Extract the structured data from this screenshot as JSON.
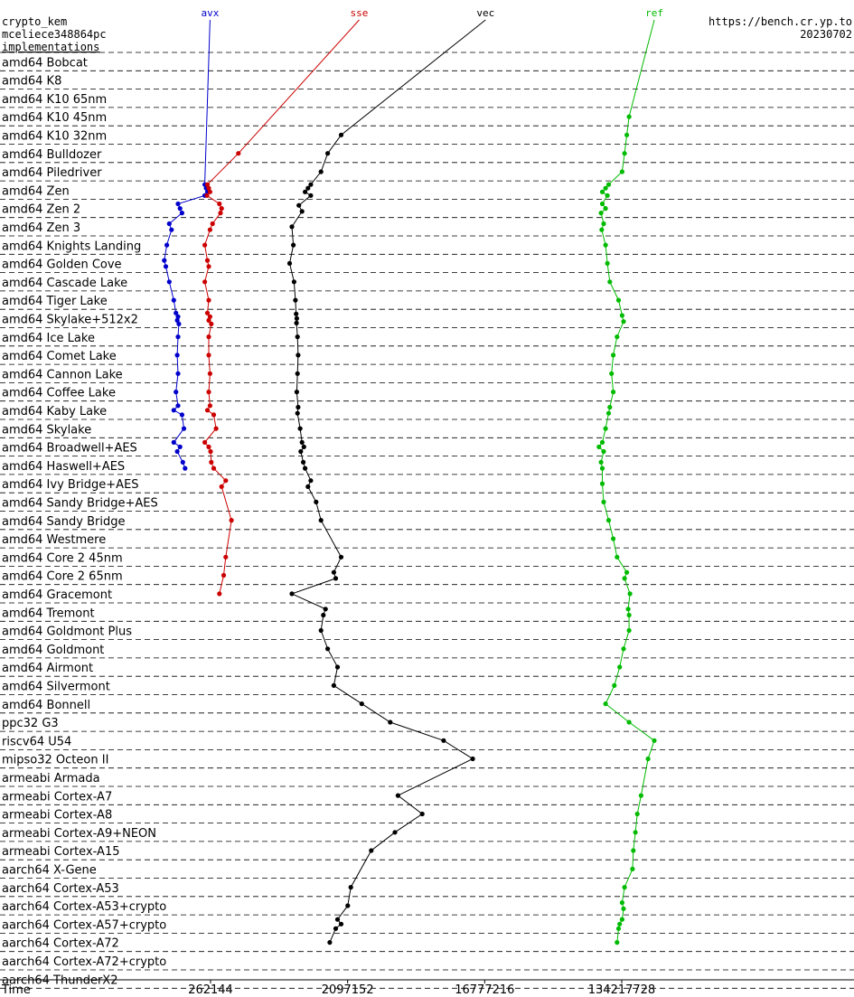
{
  "header": {
    "line1": "crypto_kem",
    "line2": "mceliece348864pc",
    "line3": "implementations",
    "site": "https://bench.cr.yp.to",
    "date": "20230702"
  },
  "chart_data": {
    "type": "line",
    "xlabel": "Time",
    "x_scale": "log2",
    "xlim": [
      32768,
      1073741824
    ],
    "x_ticks": [
      262144,
      2097152,
      16777216,
      134217728
    ],
    "x_tick_labels": [
      "262144",
      "2097152",
      "16777216",
      "134217728"
    ],
    "grid": "horizontal dashed separators between CPU groups",
    "categories": [
      "amd64 Bobcat",
      "amd64 K8",
      "amd64 K10 65nm",
      "amd64 K10 45nm",
      "amd64 K10 32nm",
      "amd64 Bulldozer",
      "amd64 Piledriver",
      "amd64 Zen",
      "amd64 Zen 2",
      "amd64 Zen 3",
      "amd64 Knights Landing",
      "amd64 Golden Cove",
      "amd64 Cascade Lake",
      "amd64 Tiger Lake",
      "amd64 Skylake+512x2",
      "amd64 Ice Lake",
      "amd64 Comet Lake",
      "amd64 Cannon Lake",
      "amd64 Coffee Lake",
      "amd64 Kaby Lake",
      "amd64 Skylake",
      "amd64 Broadwell+AES",
      "amd64 Haswell+AES",
      "amd64 Ivy Bridge+AES",
      "amd64 Sandy Bridge+AES",
      "amd64 Sandy Bridge",
      "amd64 Westmere",
      "amd64 Core 2 45nm",
      "amd64 Core 2 65nm",
      "amd64 Gracemont",
      "amd64 Tremont",
      "amd64 Goldmont Plus",
      "amd64 Goldmont",
      "amd64 Airmont",
      "amd64 Silvermont",
      "amd64 Bonnell",
      "ppc32 G3",
      "riscv64 U54",
      "mipso32 Octeon II",
      "armeabi Armada",
      "armeabi Cortex-A7",
      "armeabi Cortex-A8",
      "armeabi Cortex-A9+NEON",
      "armeabi Cortex-A15",
      "aarch64 X-Gene",
      "aarch64 Cortex-A53",
      "aarch64 Cortex-A53+crypto",
      "aarch64 Cortex-A57+crypto",
      "aarch64 Cortex-A72",
      "aarch64 Cortex-A72+crypto",
      "aarch64 ThunderX2"
    ],
    "series": [
      {
        "name": "avx",
        "color": "#0000cc",
        "label_value": 260000,
        "points": [
          {
            "row": 7,
            "values": [
              240000,
              245000,
              250000,
              240000
            ]
          },
          {
            "row": 8,
            "values": [
              160000,
              165000,
              170000
            ]
          },
          {
            "row": 9,
            "values": [
              140000,
              145000
            ]
          },
          {
            "row": 10,
            "values": [
              135000
            ]
          },
          {
            "row": 11,
            "values": [
              130000,
              133000
            ]
          },
          {
            "row": 12,
            "values": [
              140000
            ]
          },
          {
            "row": 13,
            "values": [
              150000
            ]
          },
          {
            "row": 14,
            "values": [
              155000,
              160000,
              158000,
              162000
            ]
          },
          {
            "row": 15,
            "values": [
              160000
            ]
          },
          {
            "row": 16,
            "values": [
              158000
            ]
          },
          {
            "row": 17,
            "values": [
              160000
            ]
          },
          {
            "row": 18,
            "values": [
              155000
            ]
          },
          {
            "row": 19,
            "values": [
              160000,
              150000,
              170000
            ]
          },
          {
            "row": 20,
            "values": [
              175000
            ]
          },
          {
            "row": 21,
            "values": [
              150000,
              165000,
              158000
            ]
          },
          {
            "row": 22,
            "values": [
              172000,
              178000
            ]
          }
        ]
      },
      {
        "name": "sse",
        "color": "#cc0000",
        "label_value": 2500000,
        "points": [
          {
            "row": 5,
            "values": [
              400000
            ]
          },
          {
            "row": 7,
            "values": [
              250000,
              255000,
              260000,
              248000
            ]
          },
          {
            "row": 8,
            "values": [
              300000,
              310000,
              305000
            ]
          },
          {
            "row": 9,
            "values": [
              270000,
              260000
            ]
          },
          {
            "row": 10,
            "values": [
              240000
            ]
          },
          {
            "row": 11,
            "values": [
              250000,
              255000
            ]
          },
          {
            "row": 12,
            "values": [
              240000
            ]
          },
          {
            "row": 13,
            "values": [
              255000
            ]
          },
          {
            "row": 14,
            "values": [
              250000,
              260000,
              255000,
              265000
            ]
          },
          {
            "row": 15,
            "values": [
              255000
            ]
          },
          {
            "row": 16,
            "values": [
              255000
            ]
          },
          {
            "row": 17,
            "values": [
              260000
            ]
          },
          {
            "row": 18,
            "values": [
              255000
            ]
          },
          {
            "row": 19,
            "values": [
              260000,
              250000,
              275000
            ]
          },
          {
            "row": 20,
            "values": [
              285000
            ]
          },
          {
            "row": 21,
            "values": [
              240000,
              255000,
              262000
            ]
          },
          {
            "row": 22,
            "values": [
              265000,
              275000
            ]
          },
          {
            "row": 23,
            "values": [
              330000,
              310000
            ]
          },
          {
            "row": 25,
            "values": [
              360000
            ]
          },
          {
            "row": 27,
            "values": [
              330000
            ]
          },
          {
            "row": 28,
            "values": [
              320000
            ]
          },
          {
            "row": 29,
            "values": [
              300000
            ]
          }
        ]
      },
      {
        "name": "vec",
        "color": "#000000",
        "label_value": 17000000,
        "points": [
          {
            "row": 4,
            "values": [
              1900000
            ]
          },
          {
            "row": 5,
            "values": [
              1550000
            ]
          },
          {
            "row": 6,
            "values": [
              1400000
            ]
          },
          {
            "row": 7,
            "values": [
              1200000,
              1150000,
              1100000,
              1200000
            ]
          },
          {
            "row": 8,
            "values": [
              1000000,
              1050000
            ]
          },
          {
            "row": 9,
            "values": [
              900000
            ]
          },
          {
            "row": 10,
            "values": [
              920000
            ]
          },
          {
            "row": 11,
            "values": [
              870000
            ]
          },
          {
            "row": 12,
            "values": [
              930000
            ]
          },
          {
            "row": 13,
            "values": [
              950000
            ]
          },
          {
            "row": 14,
            "values": [
              960000,
              970000,
              965000
            ]
          },
          {
            "row": 15,
            "values": [
              980000
            ]
          },
          {
            "row": 16,
            "values": [
              990000
            ]
          },
          {
            "row": 17,
            "values": [
              980000
            ]
          },
          {
            "row": 18,
            "values": [
              970000
            ]
          },
          {
            "row": 19,
            "values": [
              990000,
              980000
            ]
          },
          {
            "row": 20,
            "values": [
              1020000
            ]
          },
          {
            "row": 21,
            "values": [
              1050000,
              1080000,
              1030000
            ]
          },
          {
            "row": 22,
            "values": [
              1070000,
              1100000
            ]
          },
          {
            "row": 23,
            "values": [
              1200000,
              1150000
            ]
          },
          {
            "row": 24,
            "values": [
              1300000
            ]
          },
          {
            "row": 25,
            "values": [
              1400000
            ]
          },
          {
            "row": 27,
            "values": [
              1900000
            ]
          },
          {
            "row": 28,
            "values": [
              1700000,
              1750000
            ]
          },
          {
            "row": 29,
            "values": [
              900000
            ]
          },
          {
            "row": 30,
            "values": [
              1500000,
              1450000
            ]
          },
          {
            "row": 31,
            "values": [
              1400000
            ]
          },
          {
            "row": 32,
            "values": [
              1550000
            ]
          },
          {
            "row": 33,
            "values": [
              1800000
            ]
          },
          {
            "row": 34,
            "values": [
              1700000
            ]
          },
          {
            "row": 35,
            "values": [
              2600000
            ]
          },
          {
            "row": 36,
            "values": [
              4000000
            ]
          },
          {
            "row": 37,
            "values": [
              9000000
            ]
          },
          {
            "row": 38,
            "values": [
              14000000
            ]
          },
          {
            "row": 40,
            "values": [
              4500000
            ]
          },
          {
            "row": 41,
            "values": [
              6500000
            ]
          },
          {
            "row": 42,
            "values": [
              4300000
            ]
          },
          {
            "row": 43,
            "values": [
              3000000
            ]
          },
          {
            "row": 45,
            "values": [
              2200000
            ]
          },
          {
            "row": 46,
            "values": [
              2100000
            ]
          },
          {
            "row": 47,
            "values": [
              1800000,
              1900000,
              1750000
            ]
          },
          {
            "row": 48,
            "values": [
              1600000
            ]
          }
        ]
      },
      {
        "name": "ref",
        "color": "#00bb00",
        "label_value": 220000000,
        "points": [
          {
            "row": 3,
            "values": [
              150000000
            ]
          },
          {
            "row": 4,
            "values": [
              145000000
            ]
          },
          {
            "row": 5,
            "values": [
              140000000
            ]
          },
          {
            "row": 6,
            "values": [
              135000000
            ]
          },
          {
            "row": 7,
            "values": [
              110000000,
              105000000,
              100000000,
              108000000
            ]
          },
          {
            "row": 8,
            "values": [
              100000000,
              105000000,
              98000000
            ]
          },
          {
            "row": 9,
            "values": [
              102000000,
              99000000
            ]
          },
          {
            "row": 10,
            "values": [
              105000000
            ]
          },
          {
            "row": 11,
            "values": [
              108000000
            ]
          },
          {
            "row": 12,
            "values": [
              112000000
            ]
          },
          {
            "row": 13,
            "values": [
              128000000
            ]
          },
          {
            "row": 14,
            "values": [
              135000000,
              138000000
            ]
          },
          {
            "row": 15,
            "values": [
              125000000
            ]
          },
          {
            "row": 16,
            "values": [
              118000000
            ]
          },
          {
            "row": 17,
            "values": [
              115000000
            ]
          },
          {
            "row": 18,
            "values": [
              118000000
            ]
          },
          {
            "row": 19,
            "values": [
              112000000,
              110000000
            ]
          },
          {
            "row": 20,
            "values": [
              105000000
            ]
          },
          {
            "row": 21,
            "values": [
              100000000,
              95000000,
              102000000
            ]
          },
          {
            "row": 22,
            "values": [
              98000000,
              100000000
            ]
          },
          {
            "row": 23,
            "values": [
              100000000
            ]
          },
          {
            "row": 24,
            "values": [
              102000000
            ]
          },
          {
            "row": 25,
            "values": [
              110000000
            ]
          },
          {
            "row": 26,
            "values": [
              118000000
            ]
          },
          {
            "row": 27,
            "values": [
              125000000
            ]
          },
          {
            "row": 28,
            "values": [
              145000000,
              140000000
            ]
          },
          {
            "row": 29,
            "values": [
              152000000
            ]
          },
          {
            "row": 30,
            "values": [
              148000000,
              150000000
            ]
          },
          {
            "row": 31,
            "values": [
              150000000
            ]
          },
          {
            "row": 32,
            "values": [
              138000000
            ]
          },
          {
            "row": 33,
            "values": [
              130000000
            ]
          },
          {
            "row": 34,
            "values": [
              120000000
            ]
          },
          {
            "row": 35,
            "values": [
              105000000
            ]
          },
          {
            "row": 36,
            "values": [
              150000000
            ]
          },
          {
            "row": 37,
            "values": [
              220000000
            ]
          },
          {
            "row": 38,
            "values": [
              200000000
            ]
          },
          {
            "row": 40,
            "values": [
              180000000
            ]
          },
          {
            "row": 41,
            "values": [
              170000000
            ]
          },
          {
            "row": 42,
            "values": [
              165000000
            ]
          },
          {
            "row": 43,
            "values": [
              160000000
            ]
          },
          {
            "row": 44,
            "values": [
              158000000
            ]
          },
          {
            "row": 45,
            "values": [
              140000000
            ]
          },
          {
            "row": 46,
            "values": [
              135000000,
              138000000
            ]
          },
          {
            "row": 47,
            "values": [
              135000000,
              130000000,
              128000000
            ]
          },
          {
            "row": 48,
            "values": [
              125000000
            ]
          }
        ]
      }
    ]
  }
}
